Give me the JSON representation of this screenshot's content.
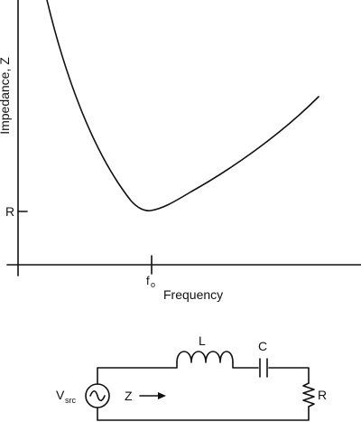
{
  "chart": {
    "y_axis_label": "Impedance, Z",
    "x_axis_label": "Frequency",
    "y_tick_label": "R",
    "x_tick_label_main": "f",
    "x_tick_label_sub": "o"
  },
  "circuit": {
    "source_label_main": "V",
    "source_label_sub": "src",
    "impedance_label": "Z",
    "inductor_label": "L",
    "capacitor_label": "C",
    "resistor_label": "R"
  }
}
